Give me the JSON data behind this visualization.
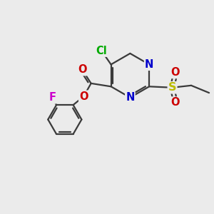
{
  "background_color": "#ebebeb",
  "bond_color": "#3a3a3a",
  "bond_width": 1.6,
  "atom_colors": {
    "C": "#3a3a3a",
    "N": "#0000cc",
    "O": "#cc0000",
    "S": "#bbbb00",
    "Cl": "#00aa00",
    "F": "#cc00cc"
  },
  "font_size": 10.5
}
